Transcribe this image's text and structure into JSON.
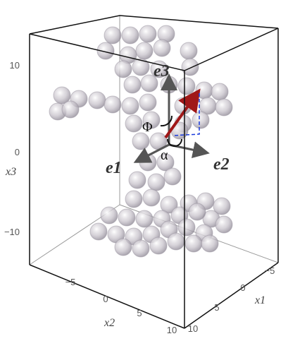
{
  "axes": {
    "x3": {
      "label": "x3",
      "ticks": [
        "10",
        "0",
        "−10"
      ]
    },
    "x2": {
      "label": "x2",
      "ticks": [
        "−5",
        "0",
        "5",
        "10"
      ]
    },
    "x1": {
      "label": "x1",
      "ticks": [
        "−5",
        "0",
        "5",
        "10"
      ]
    }
  },
  "vectors": {
    "e1": "e1",
    "e2": "e2",
    "e3": "e3"
  },
  "angles": {
    "phi": "Φ",
    "alpha": "α"
  }
}
